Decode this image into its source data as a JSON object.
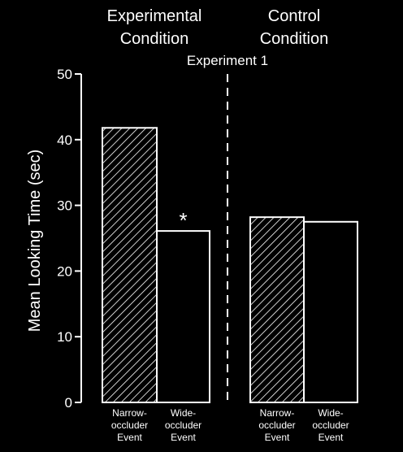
{
  "chart_data": {
    "type": "bar",
    "subtitle": "Experiment 1",
    "ylabel": "Mean Looking Time (sec)",
    "ylim": [
      0,
      50
    ],
    "yticks": [
      "0",
      "10",
      "20",
      "30",
      "40",
      "50"
    ],
    "groups": [
      {
        "title_lines": [
          "Experimental",
          "Condition"
        ],
        "bars": [
          {
            "label_lines": [
              "Narrow-",
              "occluder",
              "Event"
            ],
            "value": 41.8,
            "pattern": "hatched"
          },
          {
            "label_lines": [
              "Wide-",
              "occluder",
              "Event"
            ],
            "value": 26.1,
            "pattern": "open",
            "annotation": "*"
          }
        ]
      },
      {
        "title_lines": [
          "Control",
          "Condition"
        ],
        "bars": [
          {
            "label_lines": [
              "Narrow-",
              "occluder",
              "Event"
            ],
            "value": 28.2,
            "pattern": "hatched"
          },
          {
            "label_lines": [
              "Wide-",
              "occluder",
              "Event"
            ],
            "value": 27.5,
            "pattern": "open"
          }
        ]
      }
    ]
  }
}
